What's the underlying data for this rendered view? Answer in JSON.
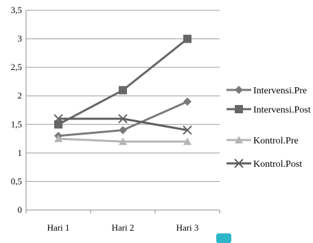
{
  "chart_data": {
    "type": "line",
    "categories": [
      "Hari 1",
      "Hari 2",
      "Hari 3"
    ],
    "yticks": [
      "0",
      "0,5",
      "1",
      "1,5",
      "2",
      "2,5",
      "3",
      "3,5"
    ],
    "ylim": [
      0,
      3.5
    ],
    "grid": true,
    "legend_position": "right",
    "series": [
      {
        "name": "Intervensi.Pre",
        "values": [
          1.3,
          1.4,
          1.9
        ],
        "color": "#7a7a7a",
        "marker": "diamond"
      },
      {
        "name": "Intervensi.Post",
        "values": [
          1.5,
          2.1,
          3.0
        ],
        "color": "#666666",
        "marker": "square"
      },
      {
        "name": "Kontrol.Pre",
        "values": [
          1.25,
          1.2,
          1.2
        ],
        "color": "#b5b5b5",
        "marker": "triangle"
      },
      {
        "name": "Kontrol.Post",
        "values": [
          1.6,
          1.6,
          1.4
        ],
        "color": "#5e5e5e",
        "marker": "x"
      }
    ]
  }
}
